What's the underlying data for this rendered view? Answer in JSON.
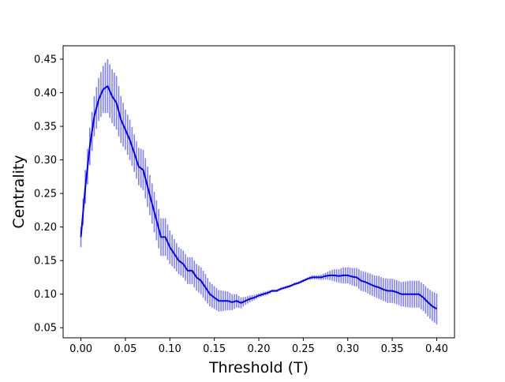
{
  "chart_data": {
    "type": "line",
    "title": "",
    "xlabel": "Threshold (T)",
    "ylabel": "Centrality",
    "xlim": [
      -0.02,
      0.42
    ],
    "ylim": [
      0.035,
      0.47
    ],
    "xticks": [
      0.0,
      0.05,
      0.1,
      0.15,
      0.2,
      0.25,
      0.3,
      0.35,
      0.4
    ],
    "xtick_labels": [
      "0.00",
      "0.05",
      "0.10",
      "0.15",
      "0.20",
      "0.25",
      "0.30",
      "0.35",
      "0.40"
    ],
    "yticks": [
      0.05,
      0.1,
      0.15,
      0.2,
      0.25,
      0.3,
      0.35,
      0.4,
      0.45
    ],
    "ytick_labels": [
      "0.05",
      "0.10",
      "0.15",
      "0.20",
      "0.25",
      "0.30",
      "0.35",
      "0.40",
      "0.45"
    ],
    "grid": false,
    "colors": {
      "line": "#0000ff",
      "errorbar": "#8080ff"
    },
    "series": [
      {
        "name": "",
        "x": [
          0.0,
          0.005,
          0.01,
          0.015,
          0.02,
          0.025,
          0.03,
          0.035,
          0.04,
          0.045,
          0.05,
          0.055,
          0.06,
          0.065,
          0.07,
          0.075,
          0.08,
          0.085,
          0.09,
          0.095,
          0.1,
          0.105,
          0.11,
          0.115,
          0.12,
          0.125,
          0.13,
          0.135,
          0.14,
          0.145,
          0.15,
          0.155,
          0.16,
          0.165,
          0.17,
          0.175,
          0.18,
          0.185,
          0.19,
          0.195,
          0.2,
          0.205,
          0.21,
          0.215,
          0.22,
          0.225,
          0.23,
          0.235,
          0.24,
          0.245,
          0.25,
          0.255,
          0.26,
          0.265,
          0.27,
          0.275,
          0.28,
          0.285,
          0.29,
          0.295,
          0.3,
          0.305,
          0.31,
          0.315,
          0.32,
          0.325,
          0.33,
          0.335,
          0.34,
          0.345,
          0.35,
          0.355,
          0.36,
          0.365,
          0.37,
          0.375,
          0.38,
          0.385,
          0.39,
          0.395,
          0.4
        ],
        "y": [
          0.185,
          0.26,
          0.32,
          0.365,
          0.39,
          0.405,
          0.41,
          0.395,
          0.385,
          0.36,
          0.345,
          0.33,
          0.31,
          0.29,
          0.285,
          0.26,
          0.235,
          0.21,
          0.185,
          0.185,
          0.17,
          0.16,
          0.15,
          0.145,
          0.135,
          0.135,
          0.125,
          0.12,
          0.11,
          0.1,
          0.095,
          0.09,
          0.09,
          0.09,
          0.088,
          0.09,
          0.087,
          0.09,
          0.093,
          0.095,
          0.098,
          0.1,
          0.102,
          0.105,
          0.105,
          0.108,
          0.11,
          0.112,
          0.115,
          0.117,
          0.12,
          0.123,
          0.125,
          0.125,
          0.125,
          0.127,
          0.128,
          0.128,
          0.127,
          0.128,
          0.128,
          0.126,
          0.125,
          0.12,
          0.118,
          0.115,
          0.112,
          0.11,
          0.107,
          0.105,
          0.105,
          0.103,
          0.1,
          0.1,
          0.1,
          0.1,
          0.1,
          0.095,
          0.088,
          0.082,
          0.078
        ],
        "err": [
          0.015,
          0.025,
          0.028,
          0.03,
          0.032,
          0.035,
          0.04,
          0.04,
          0.04,
          0.035,
          0.03,
          0.03,
          0.028,
          0.028,
          0.03,
          0.03,
          0.03,
          0.03,
          0.028,
          0.028,
          0.025,
          0.022,
          0.02,
          0.02,
          0.02,
          0.02,
          0.02,
          0.02,
          0.02,
          0.018,
          0.017,
          0.016,
          0.015,
          0.014,
          0.012,
          0.01,
          0.008,
          0.006,
          0.005,
          0.004,
          0.003,
          0.003,
          0.003,
          0.002,
          0.002,
          0.002,
          0.002,
          0.002,
          0.002,
          0.002,
          0.002,
          0.002,
          0.003,
          0.003,
          0.004,
          0.005,
          0.007,
          0.009,
          0.01,
          0.012,
          0.012,
          0.013,
          0.014,
          0.015,
          0.015,
          0.016,
          0.016,
          0.017,
          0.017,
          0.018,
          0.018,
          0.018,
          0.018,
          0.019,
          0.02,
          0.02,
          0.02,
          0.02,
          0.021,
          0.022,
          0.023
        ]
      }
    ]
  }
}
